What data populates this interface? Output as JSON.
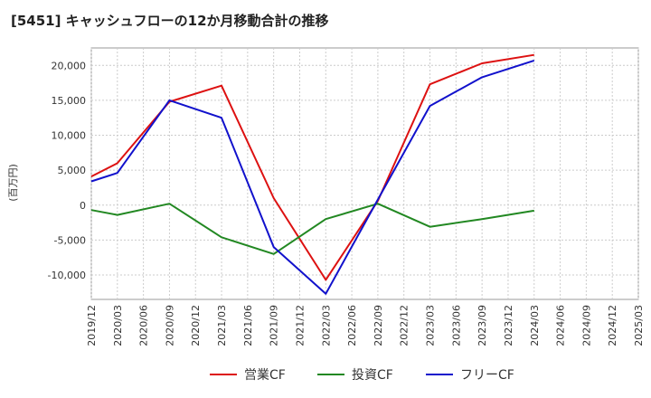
{
  "chart_data": {
    "type": "line",
    "title": "[5451]  キャッシュフローの12か月移動合計の推移",
    "ylabel": "(百万円)",
    "xlabel": "",
    "ylim": [
      -13500,
      22500
    ],
    "yticks": [
      -10000,
      -5000,
      0,
      5000,
      10000,
      15000,
      20000
    ],
    "ytick_labels": [
      "-10,000",
      "-5,000",
      "0",
      "5,000",
      "10,000",
      "15,000",
      "20,000"
    ],
    "x_ticks": [
      "2019/12",
      "2020/03",
      "2020/06",
      "2020/09",
      "2020/12",
      "2021/03",
      "2021/06",
      "2021/09",
      "2021/12",
      "2022/03",
      "2022/06",
      "2022/09",
      "2022/12",
      "2023/03",
      "2023/06",
      "2023/09",
      "2023/12",
      "2024/03",
      "2024/06",
      "2024/09",
      "2024/12",
      "2025/03"
    ],
    "grid": true,
    "legend_position": "bottom",
    "series": [
      {
        "name": "営業CF",
        "color": "#dd1111",
        "points": [
          {
            "x": "2019/12",
            "y": 4100
          },
          {
            "x": "2020/03",
            "y": 6000
          },
          {
            "x": "2020/09",
            "y": 14800
          },
          {
            "x": "2021/03",
            "y": 17100
          },
          {
            "x": "2021/09",
            "y": 1000
          },
          {
            "x": "2022/03",
            "y": -10700
          },
          {
            "x": "2022/09",
            "y": 600
          },
          {
            "x": "2023/03",
            "y": 17300
          },
          {
            "x": "2023/09",
            "y": 20300
          },
          {
            "x": "2024/03",
            "y": 21500
          }
        ]
      },
      {
        "name": "投資CF",
        "color": "#228822",
        "points": [
          {
            "x": "2019/12",
            "y": -700
          },
          {
            "x": "2020/03",
            "y": -1400
          },
          {
            "x": "2020/09",
            "y": 200
          },
          {
            "x": "2021/03",
            "y": -4600
          },
          {
            "x": "2021/09",
            "y": -7000
          },
          {
            "x": "2022/03",
            "y": -2000
          },
          {
            "x": "2022/09",
            "y": 200
          },
          {
            "x": "2023/03",
            "y": -3100
          },
          {
            "x": "2023/09",
            "y": -2000
          },
          {
            "x": "2024/03",
            "y": -800
          }
        ]
      },
      {
        "name": "フリーCF",
        "color": "#1111cc",
        "points": [
          {
            "x": "2019/12",
            "y": 3400
          },
          {
            "x": "2020/03",
            "y": 4600
          },
          {
            "x": "2020/09",
            "y": 15000
          },
          {
            "x": "2021/03",
            "y": 12500
          },
          {
            "x": "2021/09",
            "y": -6000
          },
          {
            "x": "2022/03",
            "y": -12700
          },
          {
            "x": "2022/09",
            "y": 800
          },
          {
            "x": "2023/03",
            "y": 14200
          },
          {
            "x": "2023/09",
            "y": 18300
          },
          {
            "x": "2024/03",
            "y": 20700
          }
        ]
      }
    ]
  }
}
